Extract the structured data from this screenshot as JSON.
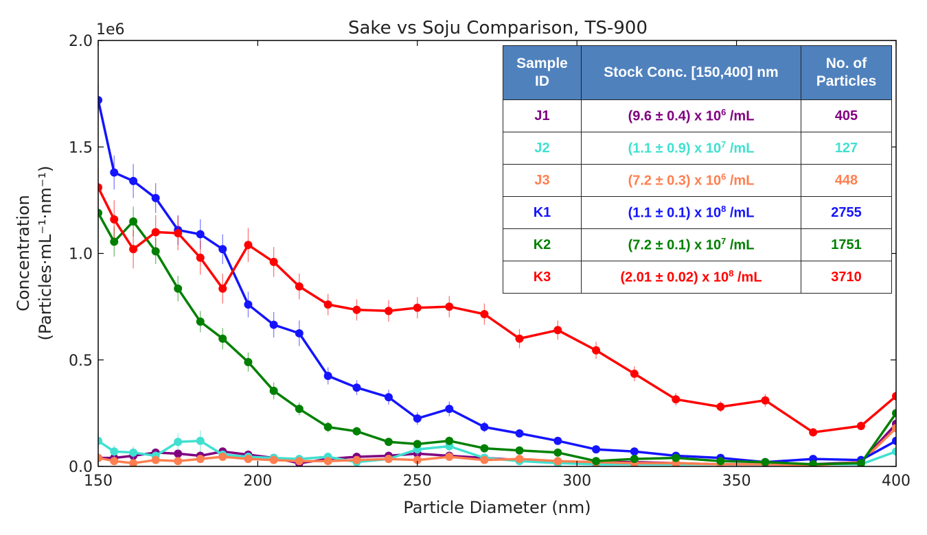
{
  "chart_data": {
    "type": "line",
    "title": "Sake vs Soju Comparison, TS-900",
    "xlabel": "Particle Diameter (nm)",
    "ylabel_line1": "Concentration",
    "ylabel_line2": "(Particles·mL⁻¹·nm⁻¹)",
    "y_offset_label": "1e6",
    "xlim": [
      150,
      400
    ],
    "ylim": [
      0,
      2.0
    ],
    "x_ticks": [
      150,
      200,
      250,
      300,
      350,
      400
    ],
    "y_ticks": [
      0.0,
      0.5,
      1.0,
      1.5,
      2.0
    ],
    "y_tick_labels": [
      "0.0",
      "0.5",
      "1.0",
      "1.5",
      "2.0"
    ],
    "x_tick_labels": [
      "150",
      "200",
      "250",
      "300",
      "350",
      "400"
    ],
    "series": [
      {
        "name": "J1",
        "color": "#800080",
        "x": [
          150,
          155,
          161,
          168,
          175,
          182,
          189,
          197,
          205,
          213,
          222,
          231,
          241,
          250,
          260,
          271,
          282,
          294,
          306,
          318,
          331,
          345,
          359,
          374,
          389,
          400
        ],
        "values": [
          0.04,
          0.04,
          0.05,
          0.065,
          0.06,
          0.05,
          0.07,
          0.055,
          0.04,
          0.015,
          0.035,
          0.045,
          0.05,
          0.06,
          0.05,
          0.04,
          0.03,
          0.02,
          0.02,
          0.02,
          0.015,
          0.01,
          0.01,
          0.01,
          0.02,
          0.2
        ],
        "errors": [
          0.01,
          0.01,
          0.01,
          0.015,
          0.015,
          0.01,
          0.015,
          0.01,
          0.01,
          0.005,
          0.01,
          0.01,
          0.01,
          0.01,
          0.01,
          0.01,
          0.008,
          0.005,
          0.005,
          0.005,
          0.005,
          0.003,
          0.003,
          0.003,
          0.005,
          0.02
        ]
      },
      {
        "name": "J2",
        "color": "#40e0d0",
        "x": [
          150,
          155,
          161,
          168,
          175,
          182,
          189,
          197,
          205,
          213,
          222,
          231,
          241,
          250,
          260,
          271,
          282,
          294,
          306,
          318,
          331,
          345,
          359,
          374,
          389,
          400
        ],
        "values": [
          0.12,
          0.07,
          0.065,
          0.05,
          0.115,
          0.12,
          0.055,
          0.045,
          0.04,
          0.035,
          0.045,
          0.02,
          0.035,
          0.08,
          0.095,
          0.04,
          0.025,
          0.015,
          0.01,
          0.01,
          0.01,
          0.01,
          0.01,
          0.01,
          0.01,
          0.07
        ],
        "errors": [
          0.03,
          0.03,
          0.03,
          0.02,
          0.04,
          0.05,
          0.02,
          0.02,
          0.015,
          0.015,
          0.02,
          0.01,
          0.015,
          0.03,
          0.03,
          0.015,
          0.01,
          0.01,
          0.005,
          0.005,
          0.005,
          0.005,
          0.005,
          0.005,
          0.005,
          0.02
        ]
      },
      {
        "name": "J3",
        "color": "#ff7f50",
        "x": [
          150,
          155,
          161,
          168,
          175,
          182,
          189,
          197,
          205,
          213,
          222,
          231,
          241,
          250,
          260,
          271,
          282,
          294,
          306,
          318,
          331,
          345,
          359,
          374,
          389,
          400
        ],
        "values": [
          0.04,
          0.025,
          0.015,
          0.03,
          0.025,
          0.035,
          0.045,
          0.035,
          0.03,
          0.025,
          0.025,
          0.03,
          0.035,
          0.03,
          0.045,
          0.03,
          0.035,
          0.025,
          0.02,
          0.015,
          0.015,
          0.01,
          0.01,
          0.005,
          0.02,
          0.18
        ],
        "errors": [
          0.01,
          0.01,
          0.008,
          0.01,
          0.01,
          0.01,
          0.01,
          0.01,
          0.01,
          0.008,
          0.008,
          0.01,
          0.01,
          0.01,
          0.01,
          0.01,
          0.01,
          0.008,
          0.006,
          0.005,
          0.005,
          0.004,
          0.004,
          0.003,
          0.006,
          0.02
        ]
      },
      {
        "name": "K1",
        "color": "#1414ff",
        "x": [
          150,
          155,
          161,
          168,
          175,
          182,
          189,
          197,
          205,
          213,
          222,
          231,
          241,
          250,
          260,
          271,
          282,
          294,
          306,
          318,
          331,
          345,
          359,
          374,
          389,
          400
        ],
        "values": [
          1.72,
          1.38,
          1.34,
          1.26,
          1.11,
          1.09,
          1.02,
          0.76,
          0.665,
          0.625,
          0.425,
          0.37,
          0.325,
          0.225,
          0.27,
          0.185,
          0.155,
          0.12,
          0.08,
          0.07,
          0.05,
          0.04,
          0.02,
          0.035,
          0.03,
          0.12
        ],
        "errors": [
          0.08,
          0.08,
          0.08,
          0.07,
          0.07,
          0.07,
          0.07,
          0.06,
          0.06,
          0.06,
          0.04,
          0.035,
          0.035,
          0.03,
          0.035,
          0.025,
          0.02,
          0.018,
          0.015,
          0.012,
          0.01,
          0.01,
          0.008,
          0.01,
          0.008,
          0.02
        ]
      },
      {
        "name": "K2",
        "color": "#008000",
        "x": [
          150,
          155,
          161,
          168,
          175,
          182,
          189,
          197,
          205,
          213,
          222,
          231,
          241,
          250,
          260,
          271,
          282,
          294,
          306,
          318,
          331,
          345,
          359,
          374,
          389,
          400
        ],
        "values": [
          1.19,
          1.055,
          1.15,
          1.01,
          0.835,
          0.68,
          0.6,
          0.49,
          0.355,
          0.27,
          0.185,
          0.165,
          0.115,
          0.105,
          0.12,
          0.085,
          0.075,
          0.065,
          0.025,
          0.035,
          0.04,
          0.025,
          0.02,
          0.01,
          0.015,
          0.25
        ],
        "errors": [
          0.07,
          0.07,
          0.07,
          0.06,
          0.06,
          0.05,
          0.05,
          0.045,
          0.04,
          0.03,
          0.025,
          0.02,
          0.015,
          0.015,
          0.015,
          0.012,
          0.01,
          0.01,
          0.008,
          0.008,
          0.008,
          0.006,
          0.005,
          0.004,
          0.005,
          0.03
        ]
      },
      {
        "name": "K3",
        "color": "#ff0000",
        "x": [
          150,
          155,
          161,
          168,
          175,
          182,
          189,
          197,
          205,
          213,
          222,
          231,
          241,
          250,
          260,
          271,
          282,
          294,
          306,
          318,
          331,
          345,
          359,
          374,
          389,
          400
        ],
        "values": [
          1.31,
          1.16,
          1.02,
          1.1,
          1.095,
          0.98,
          0.835,
          1.04,
          0.96,
          0.845,
          0.76,
          0.735,
          0.73,
          0.745,
          0.75,
          0.715,
          0.6,
          0.64,
          0.545,
          0.435,
          0.315,
          0.28,
          0.31,
          0.16,
          0.19,
          0.33
        ],
        "errors": [
          0.09,
          0.09,
          0.09,
          0.08,
          0.08,
          0.08,
          0.07,
          0.08,
          0.07,
          0.06,
          0.05,
          0.05,
          0.05,
          0.05,
          0.05,
          0.05,
          0.045,
          0.045,
          0.04,
          0.035,
          0.03,
          0.025,
          0.03,
          0.02,
          0.02,
          0.03
        ]
      }
    ]
  },
  "legend_table": {
    "headers": [
      "Sample ID",
      "Stock Conc. [150,400] nm",
      "No. of Particles"
    ],
    "rows": [
      {
        "id": "J1",
        "base": "(9.6 ± 0.4) x 10",
        "exp": "6",
        "unit": "/mL",
        "count": "405",
        "color": "#800080"
      },
      {
        "id": "J2",
        "base": "(1.1 ± 0.9) x 10",
        "exp": "7",
        "unit": "/mL",
        "count": "127",
        "color": "#40e0d0"
      },
      {
        "id": "J3",
        "base": "(7.2 ± 0.3) x 10",
        "exp": "6",
        "unit": "/mL",
        "count": "448",
        "color": "#ff7f50"
      },
      {
        "id": "K1",
        "base": "(1.1 ± 0.1) x 10",
        "exp": "8",
        "unit": "/mL",
        "count": "2755",
        "color": "#1414ff"
      },
      {
        "id": "K2",
        "base": "(7.2 ± 0.1) x 10",
        "exp": "7",
        "unit": "/mL",
        "count": "1751",
        "color": "#008000"
      },
      {
        "id": "K3",
        "base": "(2.01 ± 0.02) x 10",
        "exp": "8",
        "unit": "/mL",
        "count": "3710",
        "color": "#ff0000"
      }
    ],
    "header_color": "#4f81bd"
  }
}
